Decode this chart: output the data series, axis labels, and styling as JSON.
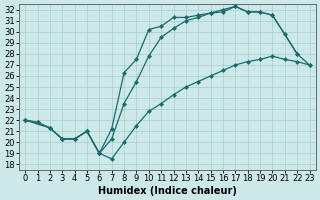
{
  "xlabel": "Humidex (Indice chaleur)",
  "bg_color": "#cce8e8",
  "grid_color": "#aacccc",
  "line_color": "#1a6b6b",
  "xlim": [
    -0.5,
    23.5
  ],
  "ylim": [
    17.5,
    32.5
  ],
  "xticks": [
    0,
    1,
    2,
    3,
    4,
    5,
    6,
    7,
    8,
    9,
    10,
    11,
    12,
    13,
    14,
    15,
    16,
    17,
    18,
    19,
    20,
    21,
    22,
    23
  ],
  "yticks": [
    18,
    19,
    20,
    21,
    22,
    23,
    24,
    25,
    26,
    27,
    28,
    29,
    30,
    31,
    32
  ],
  "line1_x": [
    0,
    1,
    2,
    3,
    4,
    5,
    6,
    7,
    8,
    9,
    10,
    11,
    12,
    13,
    14,
    15,
    16,
    17,
    18,
    19,
    20,
    22
  ],
  "line1_y": [
    22.0,
    21.8,
    21.3,
    20.3,
    20.3,
    21.0,
    19.0,
    21.2,
    26.3,
    27.5,
    30.2,
    30.5,
    31.3,
    31.3,
    31.5,
    31.7,
    32.0,
    32.3,
    31.8,
    31.8,
    31.5,
    28.0
  ],
  "line2_x": [
    0,
    2,
    3,
    4,
    5,
    6,
    7,
    8,
    9,
    10,
    11,
    12,
    13,
    14,
    15,
    16,
    17,
    18,
    19,
    20,
    21,
    22,
    23
  ],
  "line2_y": [
    22.0,
    21.3,
    20.3,
    20.3,
    21.0,
    19.0,
    20.3,
    23.5,
    25.5,
    27.8,
    29.5,
    30.3,
    31.0,
    31.3,
    31.7,
    31.8,
    32.3,
    31.8,
    31.8,
    31.5,
    29.8,
    28.0,
    27.0
  ],
  "line3_x": [
    0,
    1,
    2,
    3,
    4,
    5,
    6,
    7,
    8,
    9,
    10,
    11,
    12,
    13,
    14,
    15,
    16,
    17,
    18,
    19,
    20,
    21,
    22,
    23
  ],
  "line3_y": [
    22.0,
    21.8,
    21.3,
    20.3,
    20.3,
    21.0,
    19.0,
    18.5,
    20.0,
    21.5,
    22.8,
    23.5,
    24.3,
    25.0,
    25.5,
    26.0,
    26.5,
    27.0,
    27.3,
    27.5,
    27.8,
    27.5,
    27.3,
    27.0
  ],
  "font_size": 6,
  "marker": "D",
  "marker_size": 2.5,
  "line_width": 0.9
}
